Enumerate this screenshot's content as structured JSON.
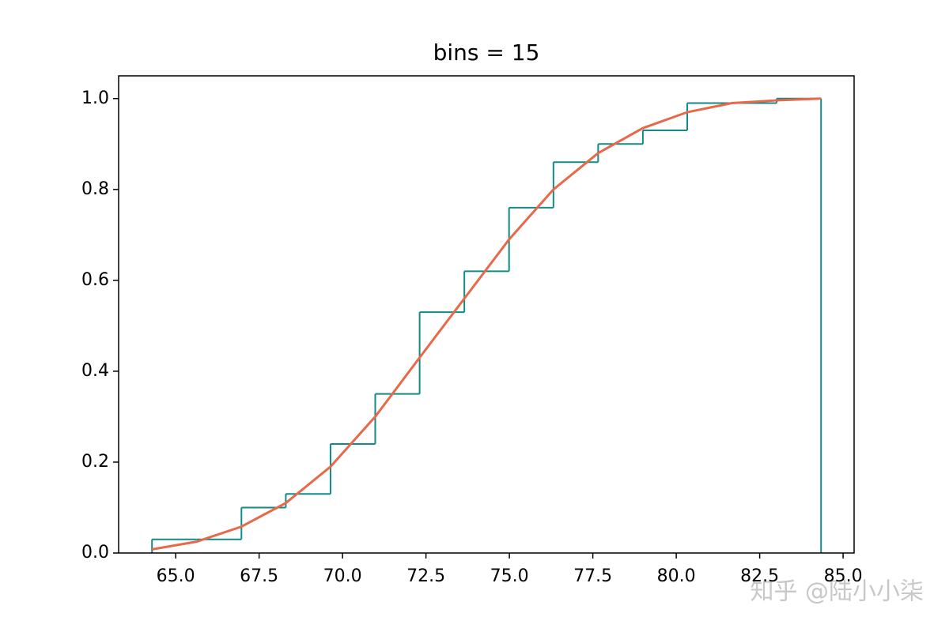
{
  "chart_data": {
    "type": "histogram",
    "title": "bins = 15",
    "cumulative": true,
    "bins": [
      64.29,
      65.63,
      66.97,
      68.3,
      69.64,
      70.98,
      72.31,
      73.65,
      74.99,
      76.32,
      77.66,
      79.0,
      80.33,
      81.67,
      83.01,
      84.34
    ],
    "values": [
      0.03,
      0.03,
      0.1,
      0.13,
      0.24,
      0.35,
      0.53,
      0.62,
      0.76,
      0.86,
      0.9,
      0.93,
      0.99,
      0.99,
      1.0
    ],
    "color": "#138a8a",
    "line": {
      "color": "#e8684a",
      "values": [
        0.008,
        0.025,
        0.058,
        0.11,
        0.19,
        0.3,
        0.43,
        0.56,
        0.69,
        0.8,
        0.88,
        0.935,
        0.97,
        0.99,
        0.996,
        1.0
      ]
    },
    "xlim": [
      63.29,
      85.33
    ],
    "ylim": [
      0,
      1.05
    ],
    "xticks": [
      {
        "value": 65,
        "label": "65.0"
      },
      {
        "value": 67.5,
        "label": "67.5"
      },
      {
        "value": 70,
        "label": "70.0"
      },
      {
        "value": 72.5,
        "label": "72.5"
      },
      {
        "value": 75,
        "label": "75.0"
      },
      {
        "value": 77.5,
        "label": "77.5"
      },
      {
        "value": 80,
        "label": "80.0"
      },
      {
        "value": 82.5,
        "label": "82.5"
      },
      {
        "value": 85,
        "label": "85.0"
      }
    ],
    "yticks": [
      {
        "value": 0,
        "label": "0.0"
      },
      0.2,
      0.4,
      0.6,
      0.8,
      {
        "value": 1,
        "label": "1.0"
      }
    ],
    "grid": false
  },
  "watermark": "知乎 @陆小小柒"
}
